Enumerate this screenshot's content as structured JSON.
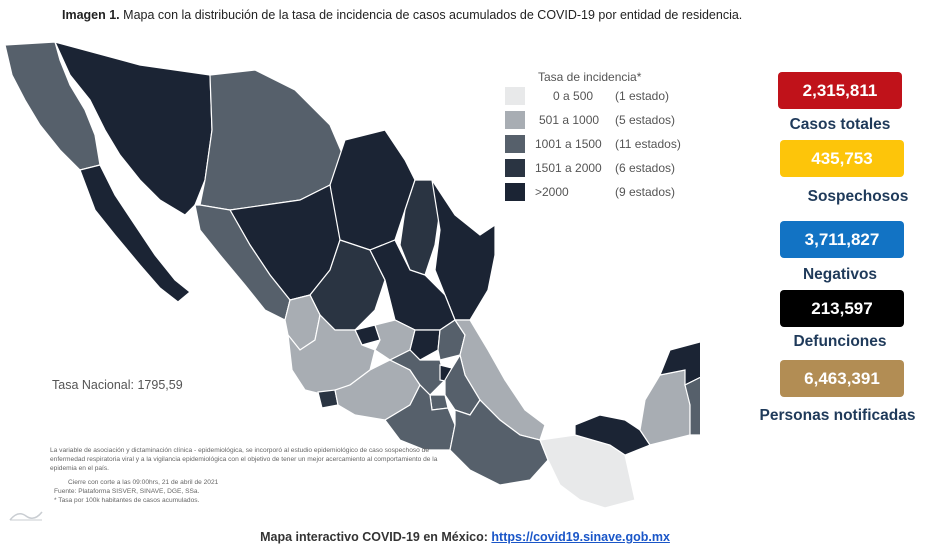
{
  "caption": {
    "label": "Imagen 1.",
    "text": "Mapa con la distribución de la tasa de incidencia de casos acumulados de COVID-19 por entidad de residencia."
  },
  "legend": {
    "title": "Tasa de incidencia*",
    "items": [
      {
        "range": "0 a   500",
        "count": "(1 estado)",
        "color": "#e8e9ea"
      },
      {
        "range": "501 a 1000",
        "count": "(5 estados)",
        "color": "#a8adb3"
      },
      {
        "range": "1001 a 1500",
        "count": "(11 estados)",
        "color": "#56606b"
      },
      {
        "range": "1501 a 2000",
        "count": "(6 estados)",
        "color": "#2a3442"
      },
      {
        "range": ">2000",
        "count": "(9 estados)",
        "color": "#1b2434"
      }
    ]
  },
  "national_rate": "Tasa Nacional: 1795,59",
  "notes": {
    "main": "La variable de asociación y dictaminación clínica - epidemiológica, se incorporó al estudio epidemiológico de caso sospechoso de enfermedad respiratoria viral y a la vigilancia epidemiológica con el objetivo de tener un mejor acercamiento al comportamiento de la epidemia en el país.",
    "cutoff": "Cierre con corte a las 09:00hrs, 21 de abril de 2021",
    "source": "Fuente: Plataforma SISVER, SINAVE, DGE, SSa.",
    "rate_note": "* Tasa por 100k habitantes de casos acumulados."
  },
  "stats": [
    {
      "value": "2,315,811",
      "label": "Casos totales",
      "color": "#c0121a"
    },
    {
      "value": "435,753",
      "label": "Sospechosos",
      "color": "#fdc50a"
    },
    {
      "value": "3,711,827",
      "label": "Negativos",
      "color": "#1273c4"
    },
    {
      "value": "213,597",
      "label": "Defunciones",
      "color": "#000000"
    },
    {
      "value": "6,463,391",
      "label": "Personas notificadas",
      "color": "#b28d54"
    }
  ],
  "footer": {
    "text": "Mapa interactivo COVID-19 en México:",
    "link": "https://covid19.sinave.gob.mx"
  }
}
